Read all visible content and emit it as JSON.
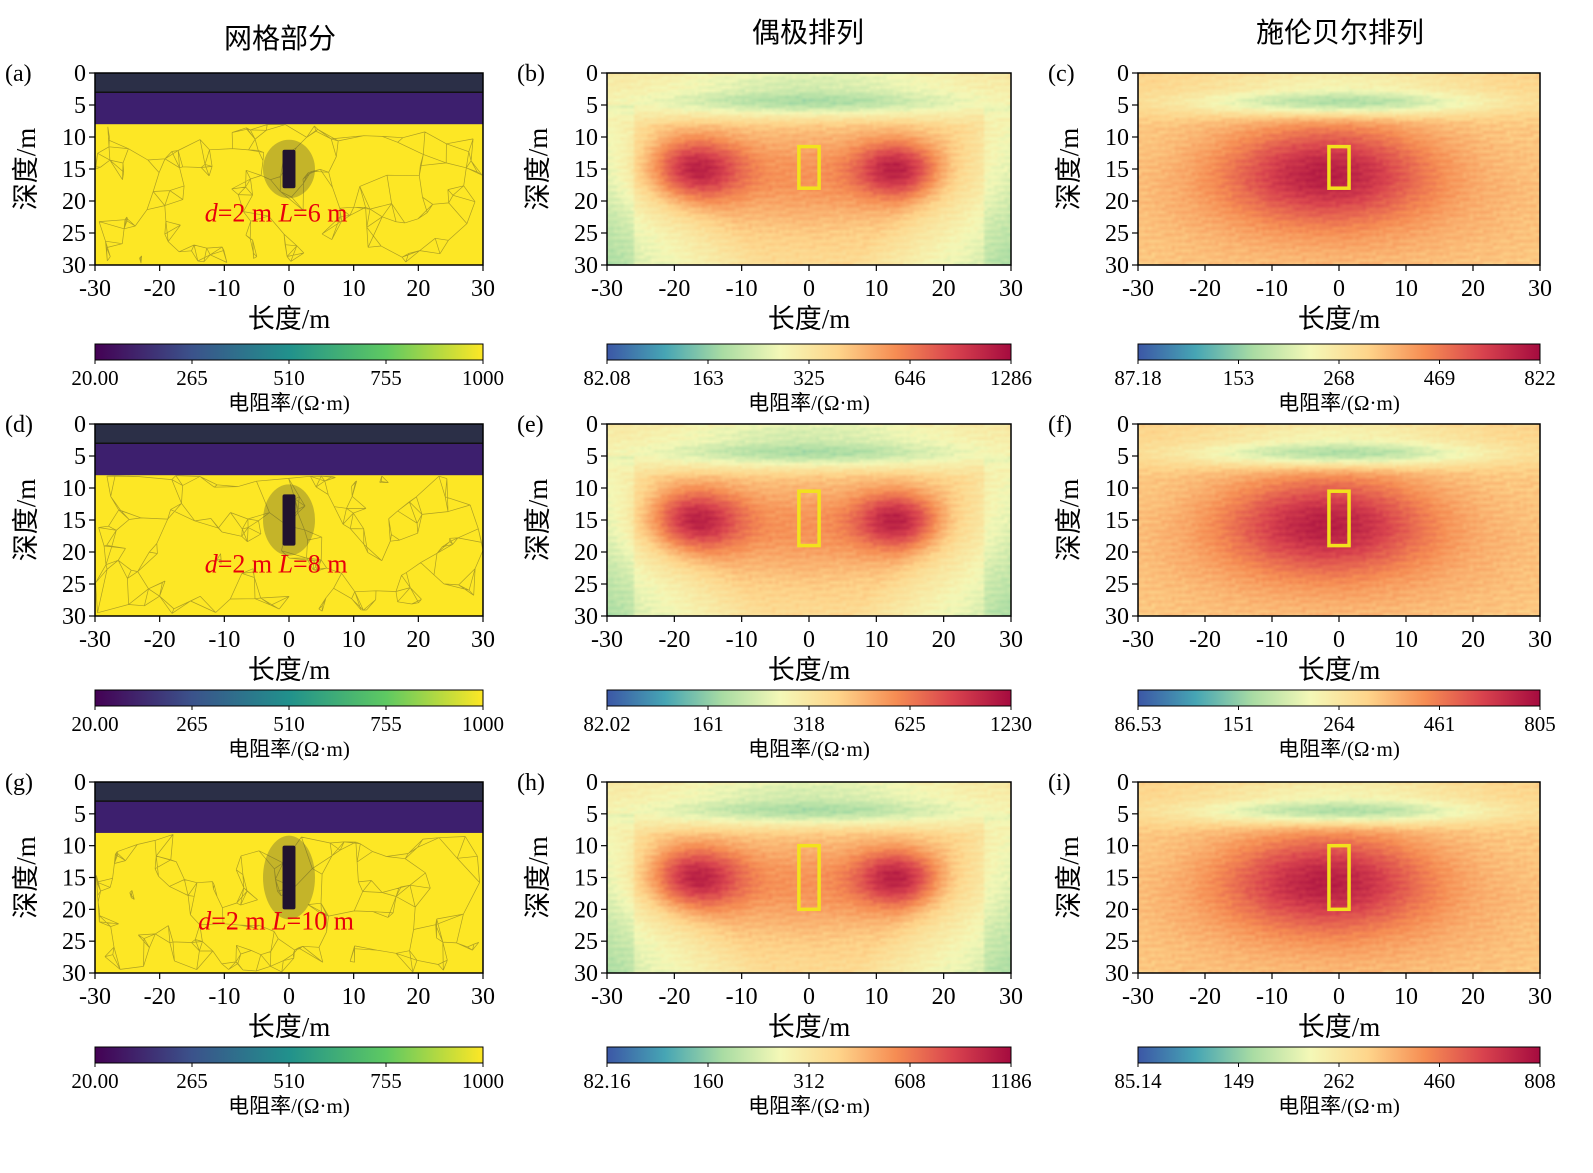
{
  "column_titles": [
    "网格部分",
    "偶极排列",
    "施伦贝尔排列"
  ],
  "colors": {
    "viridis": [
      "#440154",
      "#3b528b",
      "#21918c",
      "#5ec962",
      "#fde725"
    ],
    "spectral": [
      "#3c57a6",
      "#46a5b4",
      "#a9dca3",
      "#f4f8b7",
      "#fed58b",
      "#f68d53",
      "#d9434e",
      "#a50b3f"
    ],
    "annotation": "#e8000b",
    "target_box": "#f2e21c"
  },
  "chart_data": [
    {
      "id": "a",
      "panel_label": "(a)",
      "type": "heatmap",
      "kind": "mesh",
      "xlabel": "长度/m",
      "ylabel": "深度/m",
      "xlim": [
        -30,
        30
      ],
      "ylim": [
        30,
        0
      ],
      "xticks": [
        "-30",
        "-20",
        "-10",
        "0",
        "10",
        "20",
        "30"
      ],
      "yticks": [
        "0",
        "5",
        "10",
        "15",
        "20",
        "25",
        "30"
      ],
      "layer_depths": [
        3,
        8
      ],
      "target": {
        "x": [
          -1,
          1
        ],
        "z": [
          12,
          18
        ]
      },
      "annotation": {
        "d_symbol": "d",
        "d_value": "=2 m",
        "l_symbol": "L",
        "l_value": "=6 m"
      },
      "colorbar": {
        "ticks": [
          "20.00",
          "265",
          "510",
          "755",
          "1000"
        ],
        "label": "电阻率/(Ω·m)",
        "cmap": "viridis"
      }
    },
    {
      "id": "b",
      "panel_label": "(b)",
      "type": "heatmap",
      "kind": "dipole",
      "xlabel": "长度/m",
      "ylabel": "深度/m",
      "xlim": [
        -30,
        30
      ],
      "ylim": [
        30,
        0
      ],
      "xticks": [
        "-30",
        "-20",
        "-10",
        "0",
        "10",
        "20",
        "30"
      ],
      "yticks": [
        "0",
        "5",
        "10",
        "15",
        "20",
        "25",
        "30"
      ],
      "target": {
        "x": [
          -1.5,
          1.5
        ],
        "z": [
          11.5,
          18
        ]
      },
      "colorbar": {
        "ticks": [
          "82.08",
          "163",
          "325",
          "646",
          "1286"
        ],
        "label": "电阻率/(Ω·m)",
        "cmap": "spectral"
      }
    },
    {
      "id": "c",
      "panel_label": "(c)",
      "type": "heatmap",
      "kind": "schlumberger",
      "xlabel": "长度/m",
      "ylabel": "深度/m",
      "xlim": [
        -30,
        30
      ],
      "ylim": [
        30,
        0
      ],
      "xticks": [
        "-30",
        "-20",
        "-10",
        "0",
        "10",
        "20",
        "30"
      ],
      "yticks": [
        "0",
        "5",
        "10",
        "15",
        "20",
        "25",
        "30"
      ],
      "target": {
        "x": [
          -1.5,
          1.5
        ],
        "z": [
          11.5,
          18
        ]
      },
      "colorbar": {
        "ticks": [
          "87.18",
          "153",
          "268",
          "469",
          "822"
        ],
        "label": "电阻率/(Ω·m)",
        "cmap": "spectral"
      }
    },
    {
      "id": "d",
      "panel_label": "(d)",
      "type": "heatmap",
      "kind": "mesh",
      "xlabel": "长度/m",
      "ylabel": "深度/m",
      "xlim": [
        -30,
        30
      ],
      "ylim": [
        30,
        0
      ],
      "xticks": [
        "-30",
        "-20",
        "-10",
        "0",
        "10",
        "20",
        "30"
      ],
      "yticks": [
        "0",
        "5",
        "10",
        "15",
        "20",
        "25",
        "30"
      ],
      "layer_depths": [
        3,
        8
      ],
      "target": {
        "x": [
          -1,
          1
        ],
        "z": [
          11,
          19
        ]
      },
      "annotation": {
        "d_symbol": "d",
        "d_value": "=2 m",
        "l_symbol": "L",
        "l_value": "=8 m"
      },
      "colorbar": {
        "ticks": [
          "20.00",
          "265",
          "510",
          "755",
          "1000"
        ],
        "label": "电阻率/(Ω·m)",
        "cmap": "viridis"
      }
    },
    {
      "id": "e",
      "panel_label": "(e)",
      "type": "heatmap",
      "kind": "dipole",
      "xlabel": "长度/m",
      "ylabel": "深度/m",
      "xlim": [
        -30,
        30
      ],
      "ylim": [
        30,
        0
      ],
      "xticks": [
        "-30",
        "-20",
        "-10",
        "0",
        "10",
        "20",
        "30"
      ],
      "yticks": [
        "0",
        "5",
        "10",
        "15",
        "20",
        "25",
        "30"
      ],
      "target": {
        "x": [
          -1.5,
          1.5
        ],
        "z": [
          10.5,
          19
        ]
      },
      "colorbar": {
        "ticks": [
          "82.02",
          "161",
          "318",
          "625",
          "1230"
        ],
        "label": "电阻率/(Ω·m)",
        "cmap": "spectral"
      }
    },
    {
      "id": "f",
      "panel_label": "(f)",
      "type": "heatmap",
      "kind": "schlumberger",
      "xlabel": "长度/m",
      "ylabel": "深度/m",
      "xlim": [
        -30,
        30
      ],
      "ylim": [
        30,
        0
      ],
      "xticks": [
        "-30",
        "-20",
        "-10",
        "0",
        "10",
        "20",
        "30"
      ],
      "yticks": [
        "0",
        "5",
        "10",
        "15",
        "20",
        "25",
        "30"
      ],
      "target": {
        "x": [
          -1.5,
          1.5
        ],
        "z": [
          10.5,
          19
        ]
      },
      "colorbar": {
        "ticks": [
          "86.53",
          "151",
          "264",
          "461",
          "805"
        ],
        "label": "电阻率/(Ω·m)",
        "cmap": "spectral"
      }
    },
    {
      "id": "g",
      "panel_label": "(g)",
      "type": "heatmap",
      "kind": "mesh",
      "xlabel": "长度/m",
      "ylabel": "深度/m",
      "xlim": [
        -30,
        30
      ],
      "ylim": [
        30,
        0
      ],
      "xticks": [
        "-30",
        "-20",
        "-10",
        "0",
        "10",
        "20",
        "30"
      ],
      "yticks": [
        "0",
        "5",
        "10",
        "15",
        "20",
        "25",
        "30"
      ],
      "layer_depths": [
        3,
        8
      ],
      "target": {
        "x": [
          -1,
          1
        ],
        "z": [
          10,
          20
        ]
      },
      "annotation": {
        "d_symbol": "d",
        "d_value": "=2 m",
        "l_symbol": "L",
        "l_value": "=10 m"
      },
      "colorbar": {
        "ticks": [
          "20.00",
          "265",
          "510",
          "755",
          "1000"
        ],
        "label": "电阻率/(Ω·m)",
        "cmap": "viridis"
      }
    },
    {
      "id": "h",
      "panel_label": "(h)",
      "type": "heatmap",
      "kind": "dipole",
      "xlabel": "长度/m",
      "ylabel": "深度/m",
      "xlim": [
        -30,
        30
      ],
      "ylim": [
        30,
        0
      ],
      "xticks": [
        "-30",
        "-20",
        "-10",
        "0",
        "10",
        "20",
        "30"
      ],
      "yticks": [
        "0",
        "5",
        "10",
        "15",
        "20",
        "25",
        "30"
      ],
      "target": {
        "x": [
          -1.5,
          1.5
        ],
        "z": [
          10,
          20
        ]
      },
      "colorbar": {
        "ticks": [
          "82.16",
          "160",
          "312",
          "608",
          "1186"
        ],
        "label": "电阻率/(Ω·m)",
        "cmap": "spectral"
      }
    },
    {
      "id": "i",
      "panel_label": "(i)",
      "type": "heatmap",
      "kind": "schlumberger",
      "xlabel": "长度/m",
      "ylabel": "深度/m",
      "xlim": [
        -30,
        30
      ],
      "ylim": [
        30,
        0
      ],
      "xticks": [
        "-30",
        "-20",
        "-10",
        "0",
        "10",
        "20",
        "30"
      ],
      "yticks": [
        "0",
        "5",
        "10",
        "15",
        "20",
        "25",
        "30"
      ],
      "target": {
        "x": [
          -1.5,
          1.5
        ],
        "z": [
          10,
          20
        ]
      },
      "colorbar": {
        "ticks": [
          "85.14",
          "149",
          "262",
          "460",
          "808"
        ],
        "label": "电阻率/(Ω·m)",
        "cmap": "spectral"
      }
    }
  ]
}
